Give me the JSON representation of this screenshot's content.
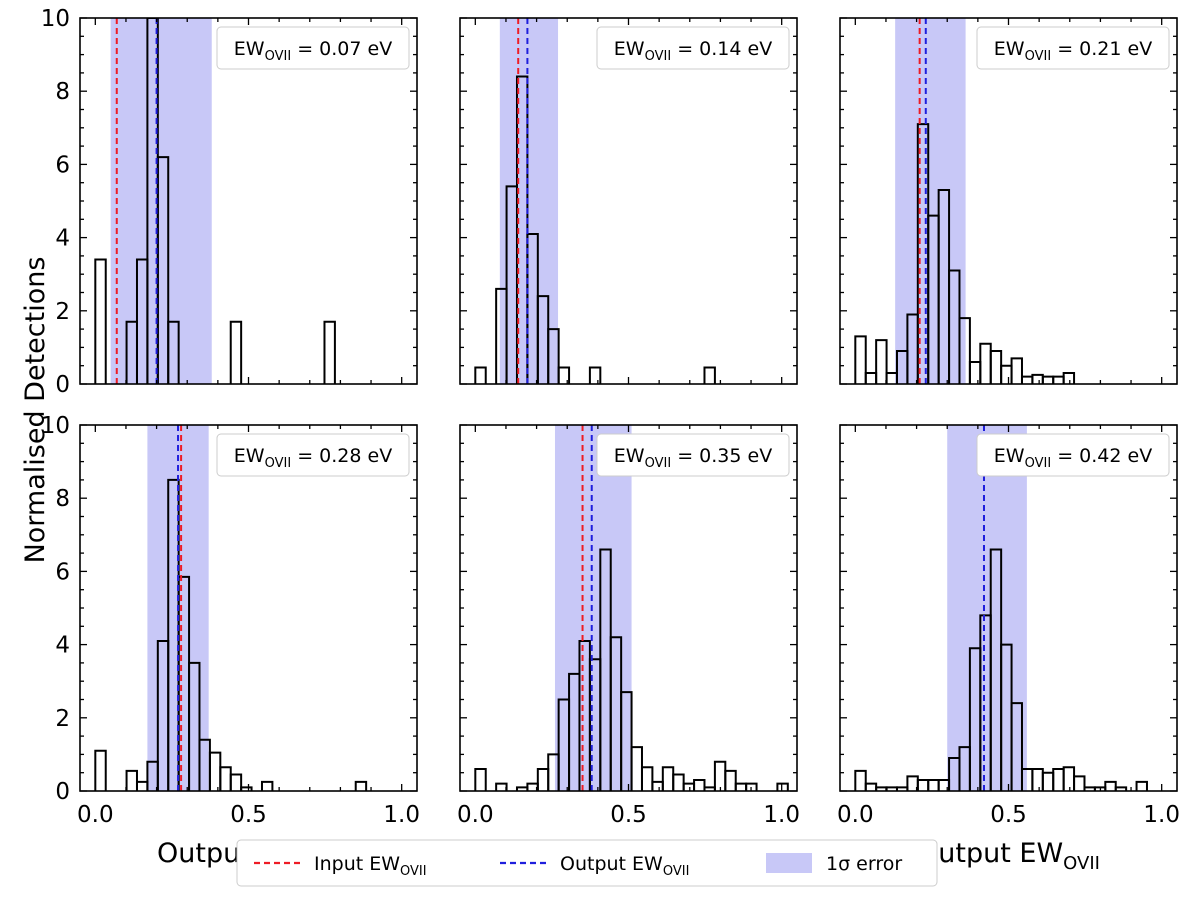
{
  "figure": {
    "ylabel": "Normalised Detections",
    "xlabel_main": "Output EW",
    "xlabel_sub": "OVII",
    "ann_prefix": "EW",
    "ann_sub": "OVII",
    "ann_suffix": " eV"
  },
  "legend": {
    "input": {
      "text": "Input EW",
      "sub": "OVII"
    },
    "output": {
      "text": "Output EW",
      "sub": "OVII"
    },
    "error": {
      "text": "1σ error"
    }
  },
  "colors": {
    "input_line": "#ee1c25",
    "output_line": "#1f1fdd",
    "error_band": "#c8c8f7",
    "histogram": "#000000"
  },
  "chart_data": [
    {
      "type": "histogram",
      "panel": "top-left",
      "input_ew": 0.07,
      "output_ew": 0.2,
      "error_range": [
        0.05,
        0.38
      ],
      "label_value": "0.07",
      "bin_width": 0.034,
      "bin_start": 0.0,
      "values": [
        3.4,
        0,
        0,
        1.7,
        3.4,
        10,
        6.2,
        1.7,
        0,
        0,
        0,
        0,
        0,
        1.7,
        0,
        0,
        0,
        0,
        0,
        0,
        0,
        0,
        1.7,
        0,
        0,
        0,
        0,
        0,
        0,
        0
      ],
      "xlim": [
        -0.05,
        1.05
      ],
      "ylim": [
        0,
        10
      ],
      "xticks": [
        "0.0",
        "0.5",
        "1.0"
      ],
      "yticks": [
        "0",
        "2",
        "4",
        "6",
        "8",
        "10"
      ],
      "show_xticklabels": false,
      "show_yticklabels": true
    },
    {
      "type": "histogram",
      "panel": "top-middle",
      "input_ew": 0.14,
      "output_ew": 0.17,
      "error_range": [
        0.08,
        0.27
      ],
      "label_value": "0.14",
      "bin_width": 0.034,
      "bin_start": 0.0,
      "values": [
        0.45,
        0,
        2.6,
        5.4,
        8.4,
        4.1,
        2.4,
        1.5,
        0.45,
        0,
        0,
        0.45,
        0,
        0,
        0,
        0,
        0,
        0,
        0,
        0,
        0,
        0,
        0.45,
        0,
        0,
        0,
        0,
        0,
        0,
        0
      ],
      "xlim": [
        -0.05,
        1.05
      ],
      "ylim": [
        0,
        10
      ],
      "xticks": [
        "0.0",
        "0.5",
        "1.0"
      ],
      "yticks": [
        "0",
        "2",
        "4",
        "6",
        "8",
        "10"
      ],
      "show_xticklabels": false,
      "show_yticklabels": false
    },
    {
      "type": "histogram",
      "panel": "top-right",
      "input_ew": 0.21,
      "output_ew": 0.23,
      "error_range": [
        0.13,
        0.36
      ],
      "label_value": "0.21",
      "bin_width": 0.034,
      "bin_start": 0.0,
      "values": [
        1.3,
        0.3,
        1.2,
        0.3,
        0.9,
        1.9,
        7.1,
        4.6,
        5.3,
        3.1,
        1.8,
        0.6,
        1.1,
        0.9,
        0.5,
        0.7,
        0.2,
        0.25,
        0.2,
        0.2,
        0.3,
        0,
        0,
        0,
        0,
        0,
        0,
        0,
        0,
        0
      ],
      "xlim": [
        -0.05,
        1.05
      ],
      "ylim": [
        0,
        10
      ],
      "xticks": [
        "0.0",
        "0.5",
        "1.0"
      ],
      "yticks": [
        "0",
        "2",
        "4",
        "6",
        "8",
        "10"
      ],
      "show_xticklabels": false,
      "show_yticklabels": false
    },
    {
      "type": "histogram",
      "panel": "bottom-left",
      "input_ew": 0.28,
      "output_ew": 0.27,
      "error_range": [
        0.17,
        0.37
      ],
      "label_value": "0.28",
      "bin_width": 0.034,
      "bin_start": 0.0,
      "values": [
        1.1,
        0,
        0,
        0.55,
        0.25,
        0.8,
        4.1,
        8.5,
        5.85,
        3.5,
        1.4,
        1.05,
        0.65,
        0.45,
        0.1,
        0,
        0.25,
        0,
        0,
        0,
        0,
        0,
        0,
        0,
        0,
        0.25,
        0,
        0,
        0,
        0
      ],
      "xlim": [
        -0.05,
        1.05
      ],
      "ylim": [
        0,
        10
      ],
      "xticks": [
        "0.0",
        "0.5",
        "1.0"
      ],
      "yticks": [
        "0",
        "2",
        "4",
        "6",
        "8",
        "10"
      ],
      "show_xticklabels": true,
      "show_yticklabels": true
    },
    {
      "type": "histogram",
      "panel": "bottom-middle",
      "input_ew": 0.35,
      "output_ew": 0.38,
      "error_range": [
        0.26,
        0.51
      ],
      "label_value": "0.35",
      "bin_width": 0.034,
      "bin_start": 0.0,
      "values": [
        0.6,
        0,
        0.2,
        0,
        0.1,
        0.2,
        0.6,
        1,
        2.5,
        3.2,
        4.1,
        3.6,
        6.6,
        4.2,
        2.7,
        1.2,
        0.65,
        0.25,
        0.65,
        0.45,
        0.2,
        0.3,
        0.1,
        0.8,
        0.55,
        0.2,
        0.2,
        0,
        0,
        0.2
      ],
      "xlim": [
        -0.05,
        1.05
      ],
      "ylim": [
        0,
        10
      ],
      "xticks": [
        "0.0",
        "0.5",
        "1.0"
      ],
      "yticks": [
        "0",
        "2",
        "4",
        "6",
        "8",
        "10"
      ],
      "show_xticklabels": true,
      "show_yticklabels": false
    },
    {
      "type": "histogram",
      "panel": "bottom-right",
      "input_ew": 0.42,
      "output_ew": 0.42,
      "error_range": [
        0.3,
        0.56
      ],
      "label_value": "0.42",
      "bin_width": 0.034,
      "bin_start": 0.0,
      "values": [
        0.55,
        0.2,
        0.1,
        0.1,
        0.1,
        0.4,
        0.3,
        0.3,
        0.3,
        0.9,
        1.2,
        3.9,
        4.8,
        6.6,
        4,
        2.4,
        0.6,
        0.6,
        0.5,
        0.6,
        0.65,
        0.4,
        0.1,
        0.1,
        0.25,
        0.1,
        0,
        0.25,
        0,
        0
      ],
      "xlim": [
        -0.05,
        1.05
      ],
      "ylim": [
        0,
        10
      ],
      "xticks": [
        "0.0",
        "0.5",
        "1.0"
      ],
      "yticks": [
        "0",
        "2",
        "4",
        "6",
        "8",
        "10"
      ],
      "show_xticklabels": true,
      "show_yticklabels": false
    }
  ]
}
